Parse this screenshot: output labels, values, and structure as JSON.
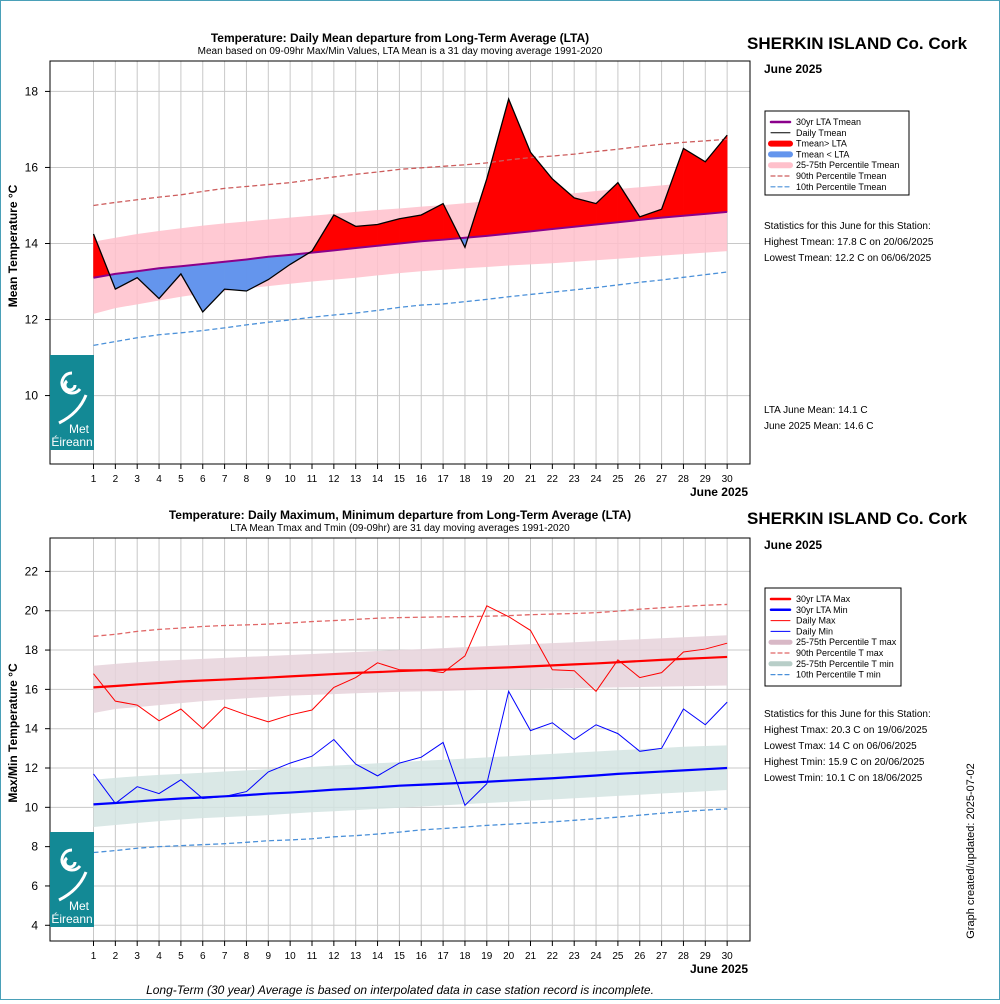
{
  "footer_note": "Long-Term (30 year) Average is based on interpolated data in case station record is incomplete.",
  "updated": "Graph created/updated:  2025-07-02",
  "logo": {
    "text1": "Met",
    "text2": "Éireann",
    "color": "#138995"
  },
  "chart_data": [
    {
      "type": "line",
      "title": "Temperature: Daily Mean departure from Long-Term Average (LTA)",
      "subtitle": "Mean based on 09-09hr Max/Min Values, LTA Mean is a 31 day moving average 1991-2020",
      "station": "SHERKIN ISLAND Co. Cork",
      "month": "June 2025",
      "ylabel": "Mean Temperature °C",
      "xlabel": "June 2025",
      "ylim": [
        8.2,
        18.8
      ],
      "yticks": [
        10,
        12,
        14,
        16,
        18
      ],
      "x": [
        1,
        2,
        3,
        4,
        5,
        6,
        7,
        8,
        9,
        10,
        11,
        12,
        13,
        14,
        15,
        16,
        17,
        18,
        19,
        20,
        21,
        22,
        23,
        24,
        25,
        26,
        27,
        28,
        29,
        30
      ],
      "legend": [
        "30yr LTA Tmean",
        "Daily Tmean",
        "Tmean> LTA",
        "Tmean < LTA",
        "25-75th Percentile Tmean",
        "90th Percentile Tmean",
        "10th Percentile Tmean"
      ],
      "series": [
        {
          "name": "Daily Tmean",
          "values": [
            14.25,
            12.8,
            13.1,
            12.55,
            13.2,
            12.2,
            12.8,
            12.75,
            13.05,
            13.45,
            13.8,
            14.75,
            14.45,
            14.5,
            14.65,
            14.75,
            15.05,
            13.9,
            15.7,
            17.8,
            16.4,
            15.7,
            15.2,
            15.05,
            15.6,
            14.7,
            14.9,
            16.5,
            16.15,
            16.85
          ]
        },
        {
          "name": "30yr LTA Tmean",
          "values": [
            13.1,
            13.2,
            13.27,
            13.35,
            13.4,
            13.46,
            13.52,
            13.58,
            13.65,
            13.7,
            13.76,
            13.82,
            13.88,
            13.94,
            14.0,
            14.06,
            14.1,
            14.15,
            14.2,
            14.26,
            14.32,
            14.38,
            14.44,
            14.5,
            14.56,
            14.62,
            14.68,
            14.73,
            14.78,
            14.83
          ]
        },
        {
          "name": "25th Percentile Tmean",
          "values": [
            12.15,
            12.3,
            12.4,
            12.5,
            12.6,
            12.68,
            12.75,
            12.82,
            12.88,
            12.94,
            13.0,
            13.05,
            13.1,
            13.16,
            13.22,
            13.27,
            13.31,
            13.35,
            13.38,
            13.42,
            13.45,
            13.48,
            13.52,
            13.56,
            13.6,
            13.64,
            13.68,
            13.72,
            13.76,
            13.8
          ]
        },
        {
          "name": "75th Percentile Tmean",
          "values": [
            14.05,
            14.15,
            14.25,
            14.33,
            14.4,
            14.47,
            14.53,
            14.58,
            14.63,
            14.68,
            14.73,
            14.78,
            14.83,
            14.88,
            14.92,
            14.97,
            15.01,
            15.06,
            15.11,
            15.16,
            15.21,
            15.27,
            15.32,
            15.38,
            15.43,
            15.48,
            15.53,
            15.58,
            15.62,
            15.67
          ]
        },
        {
          "name": "90th Percentile Tmean",
          "values": [
            15.0,
            15.08,
            15.15,
            15.22,
            15.28,
            15.37,
            15.45,
            15.5,
            15.55,
            15.6,
            15.68,
            15.75,
            15.82,
            15.88,
            15.95,
            15.99,
            16.03,
            16.07,
            16.12,
            16.2,
            16.26,
            16.3,
            16.35,
            16.42,
            16.48,
            16.55,
            16.61,
            16.66,
            16.7,
            16.74
          ]
        },
        {
          "name": "10th Percentile Tmean",
          "values": [
            11.32,
            11.42,
            11.52,
            11.6,
            11.65,
            11.71,
            11.78,
            11.86,
            11.93,
            11.99,
            12.06,
            12.12,
            12.17,
            12.24,
            12.32,
            12.38,
            12.41,
            12.47,
            12.53,
            12.6,
            12.66,
            12.72,
            12.78,
            12.84,
            12.91,
            12.98,
            13.04,
            13.11,
            13.18,
            13.25
          ]
        }
      ],
      "colors": {
        "lta": "#8b008b",
        "daily": "#000000",
        "above": "#ff0000",
        "below": "#6495ed",
        "band": "#ffc0cb",
        "p90": "#cd5c5c",
        "p10": "#4a90d9"
      },
      "stats_title": "Statistics for this June for this Station:",
      "stats": [
        "Highest Tmean: 17.8 C on 20/06/2025",
        "Lowest Tmean: 12.2 C on 06/06/2025"
      ],
      "means": [
        "LTA June Mean: 14.1 C",
        "June 2025 Mean: 14.6 C"
      ]
    },
    {
      "type": "line",
      "title": "Temperature: Daily Maximum, Minimum departure from Long-Term Average (LTA)",
      "subtitle": "LTA Mean Tmax and Tmin (09-09hr) are 31 day moving averages 1991-2020",
      "station": "SHERKIN ISLAND Co. Cork",
      "month": "June 2025",
      "ylabel": "Max/Min Temperature °C",
      "xlabel": "June 2025",
      "ylim": [
        3.2,
        23.7
      ],
      "yticks": [
        4,
        6,
        8,
        10,
        12,
        14,
        16,
        18,
        20,
        22
      ],
      "x": [
        1,
        2,
        3,
        4,
        5,
        6,
        7,
        8,
        9,
        10,
        11,
        12,
        13,
        14,
        15,
        16,
        17,
        18,
        19,
        20,
        21,
        22,
        23,
        24,
        25,
        26,
        27,
        28,
        29,
        30
      ],
      "legend": [
        "30yr LTA Max",
        "30yr LTA Min",
        "Daily Max",
        "Daily Min",
        "25-75th Percentile T max",
        "90th Percentile T max",
        "25-75th Percentile T min",
        "10th Percentile T min"
      ],
      "series": [
        {
          "name": "Daily Max",
          "values": [
            16.8,
            15.4,
            15.2,
            14.4,
            15.0,
            14.0,
            15.1,
            14.7,
            14.35,
            14.7,
            14.95,
            16.1,
            16.6,
            17.35,
            17.0,
            17.0,
            16.85,
            17.7,
            20.25,
            19.7,
            19.0,
            17.0,
            16.95,
            15.9,
            17.5,
            16.6,
            16.85,
            17.9,
            18.05,
            18.35
          ]
        },
        {
          "name": "Daily Min",
          "values": [
            11.7,
            10.2,
            11.05,
            10.7,
            11.4,
            10.45,
            10.55,
            10.8,
            11.8,
            12.25,
            12.6,
            13.45,
            12.2,
            11.6,
            12.25,
            12.55,
            13.3,
            10.1,
            11.2,
            15.9,
            13.9,
            14.3,
            13.45,
            14.2,
            13.75,
            12.85,
            13.0,
            15.0,
            14.2,
            15.35
          ]
        },
        {
          "name": "30yr LTA Max",
          "values": [
            16.1,
            16.17,
            16.25,
            16.32,
            16.4,
            16.45,
            16.5,
            16.55,
            16.6,
            16.66,
            16.72,
            16.78,
            16.84,
            16.88,
            16.93,
            16.97,
            17.0,
            17.04,
            17.08,
            17.12,
            17.17,
            17.22,
            17.27,
            17.32,
            17.38,
            17.44,
            17.5,
            17.55,
            17.6,
            17.65
          ]
        },
        {
          "name": "30yr LTA Min",
          "values": [
            10.15,
            10.22,
            10.3,
            10.38,
            10.45,
            10.5,
            10.56,
            10.62,
            10.7,
            10.75,
            10.82,
            10.9,
            10.95,
            11.02,
            11.1,
            11.15,
            11.2,
            11.25,
            11.3,
            11.36,
            11.42,
            11.48,
            11.55,
            11.62,
            11.7,
            11.76,
            11.82,
            11.88,
            11.94,
            12.0
          ]
        },
        {
          "name": "25th Percentile T max",
          "values": [
            14.8,
            15.0,
            15.1,
            15.2,
            15.3,
            15.4,
            15.48,
            15.55,
            15.62,
            15.68,
            15.72,
            15.76,
            15.8,
            15.84,
            15.88,
            15.9,
            15.92,
            15.95,
            15.98,
            16.0,
            16.02,
            16.04,
            16.06,
            16.08,
            16.1,
            16.12,
            16.14,
            16.16,
            16.18,
            16.2
          ]
        },
        {
          "name": "75th Percentile T max",
          "values": [
            17.2,
            17.3,
            17.38,
            17.45,
            17.5,
            17.55,
            17.6,
            17.65,
            17.7,
            17.75,
            17.8,
            17.85,
            17.9,
            17.95,
            18.0,
            18.05,
            18.1,
            18.15,
            18.2,
            18.25,
            18.3,
            18.35,
            18.4,
            18.45,
            18.5,
            18.55,
            18.6,
            18.65,
            18.7,
            18.75
          ]
        },
        {
          "name": "90th Percentile T max",
          "values": [
            18.7,
            18.8,
            18.95,
            19.05,
            19.12,
            19.2,
            19.25,
            19.28,
            19.32,
            19.38,
            19.45,
            19.5,
            19.56,
            19.62,
            19.65,
            19.67,
            19.69,
            19.7,
            19.72,
            19.75,
            19.8,
            19.83,
            19.86,
            19.9,
            19.98,
            20.08,
            20.15,
            20.22,
            20.28,
            20.32
          ]
        },
        {
          "name": "25th Percentile T min",
          "values": [
            9.0,
            9.1,
            9.2,
            9.3,
            9.38,
            9.45,
            9.5,
            9.55,
            9.6,
            9.68,
            9.75,
            9.8,
            9.86,
            9.92,
            9.98,
            10.04,
            10.1,
            10.16,
            10.22,
            10.28,
            10.34,
            10.4,
            10.46,
            10.52,
            10.58,
            10.64,
            10.7,
            10.76,
            10.82,
            10.88
          ]
        },
        {
          "name": "75th Percentile T min",
          "values": [
            11.4,
            11.5,
            11.58,
            11.65,
            11.7,
            11.76,
            11.82,
            11.88,
            11.94,
            12.0,
            12.06,
            12.12,
            12.18,
            12.24,
            12.3,
            12.36,
            12.42,
            12.48,
            12.54,
            12.6,
            12.66,
            12.72,
            12.78,
            12.84,
            12.9,
            12.96,
            13.02,
            13.08,
            13.12,
            13.15
          ]
        },
        {
          "name": "10th Percentile T min",
          "values": [
            7.7,
            7.8,
            7.92,
            8.0,
            8.05,
            8.1,
            8.15,
            8.22,
            8.3,
            8.34,
            8.4,
            8.5,
            8.56,
            8.64,
            8.74,
            8.85,
            8.92,
            9.0,
            9.08,
            9.14,
            9.2,
            9.26,
            9.34,
            9.42,
            9.5,
            9.6,
            9.7,
            9.78,
            9.86,
            9.92
          ]
        }
      ],
      "colors": {
        "lta_max": "#ff0000",
        "lta_min": "#0000ff",
        "daily_max": "#ff0000",
        "daily_min": "#0000ff",
        "band_max": "#e6d2da",
        "band_min": "#d4e4e2",
        "p90": "#e06666",
        "p10": "#4a90d9"
      },
      "stats_title": "Statistics for this June for this Station:",
      "stats": [
        "Highest Tmax: 20.3 C on 19/06/2025",
        "Lowest Tmax: 14 C on 06/06/2025",
        "Highest Tmin: 15.9 C on 20/06/2025",
        "Lowest Tmin: 10.1 C on 18/06/2025"
      ]
    }
  ]
}
